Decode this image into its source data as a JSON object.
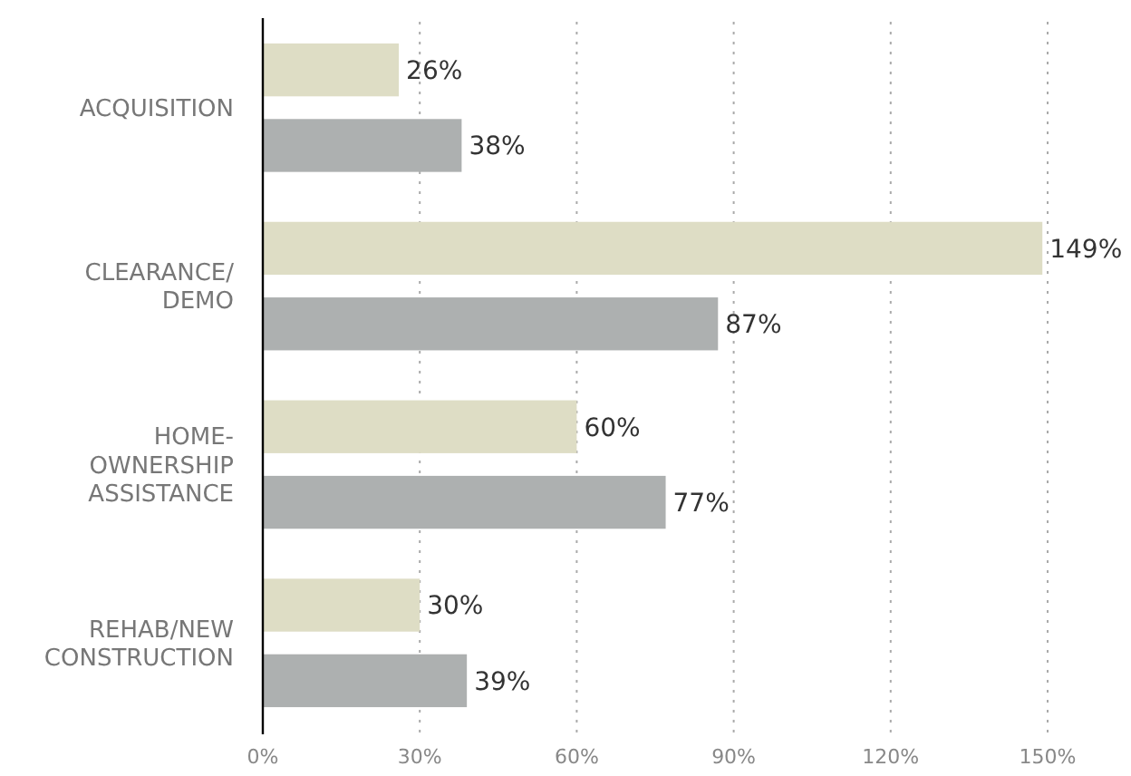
{
  "chart_data": {
    "type": "bar",
    "orientation": "horizontal",
    "categories": [
      "ACQUISITION",
      "CLEARANCE/\nDEMO",
      "HOME-\nOWNERSHIP\nASSISTANCE",
      "REHAB/NEW\nCONSTRUCTION"
    ],
    "series": [
      {
        "color": "#deddc5",
        "values": [
          26,
          149,
          60,
          30
        ],
        "value_labels": [
          "26%",
          "149%",
          "60%",
          "30%"
        ]
      },
      {
        "color": "#adb0b0",
        "values": [
          38,
          87,
          77,
          39
        ],
        "value_labels": [
          "38%",
          "87%",
          "77%",
          "39%"
        ]
      }
    ],
    "xlim": [
      0,
      150
    ],
    "xticks": [
      {
        "value": 0,
        "label": "0%"
      },
      {
        "value": 30,
        "label": "30%"
      },
      {
        "value": 60,
        "label": "60%"
      },
      {
        "value": 90,
        "label": "90%"
      },
      {
        "value": 120,
        "label": "120%"
      },
      {
        "value": 150,
        "label": "150%"
      }
    ],
    "grid": "x"
  }
}
